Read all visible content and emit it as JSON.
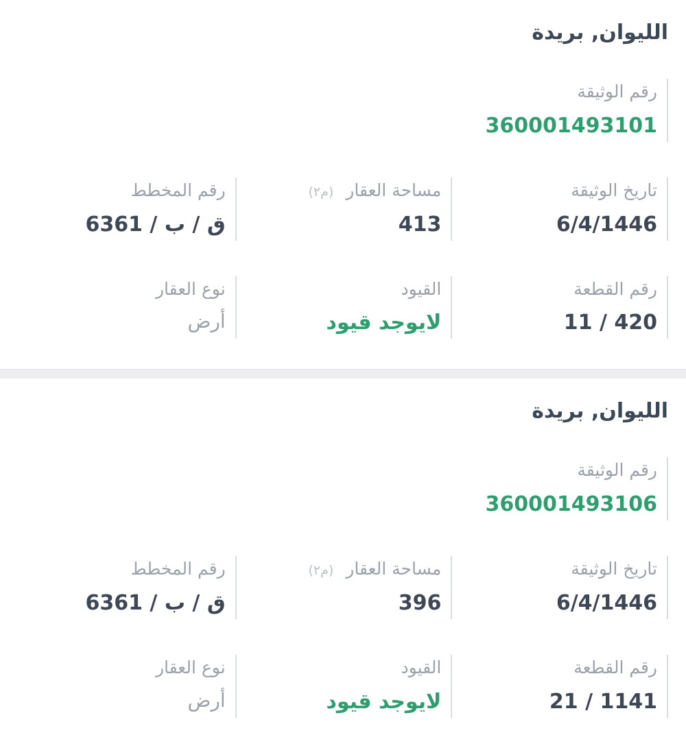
{
  "colors": {
    "title_text": "#3d4856",
    "label_gray": "#9aa1ab",
    "value_dark": "#3e4755",
    "accent_green": "#2f9e6e",
    "muted_value": "#99a1aa",
    "divider_line": "#d9dce0",
    "separator_band": "#ededf0"
  },
  "cards": [
    {
      "title": "الليوان, بريدة",
      "doc_number": {
        "label": "رقم الوثيقة",
        "value": "360001493101"
      },
      "doc_date": {
        "label": "تاريخ الوثيقة",
        "value": "6/4/1446"
      },
      "area": {
        "label": "مساحة العقار",
        "unit": "(م٢)",
        "value": "413"
      },
      "plan_number": {
        "label": "رقم المخطط",
        "value": "ق / ب / 6361"
      },
      "piece_number": {
        "label": "رقم القطعة",
        "value": "420 / 11"
      },
      "restrictions": {
        "label": "القيود",
        "value": "لايوجد قيود"
      },
      "property_type": {
        "label": "نوع العقار",
        "value": "أرض"
      }
    },
    {
      "title": "الليوان, بريدة",
      "doc_number": {
        "label": "رقم الوثيقة",
        "value": "360001493106"
      },
      "doc_date": {
        "label": "تاريخ الوثيقة",
        "value": "6/4/1446"
      },
      "area": {
        "label": "مساحة العقار",
        "unit": "(م٢)",
        "value": "396"
      },
      "plan_number": {
        "label": "رقم المخطط",
        "value": "ق / ب / 6361"
      },
      "piece_number": {
        "label": "رقم القطعة",
        "value": "1141 / 21"
      },
      "restrictions": {
        "label": "القيود",
        "value": "لايوجد قيود"
      },
      "property_type": {
        "label": "نوع العقار",
        "value": "أرض"
      }
    }
  ]
}
